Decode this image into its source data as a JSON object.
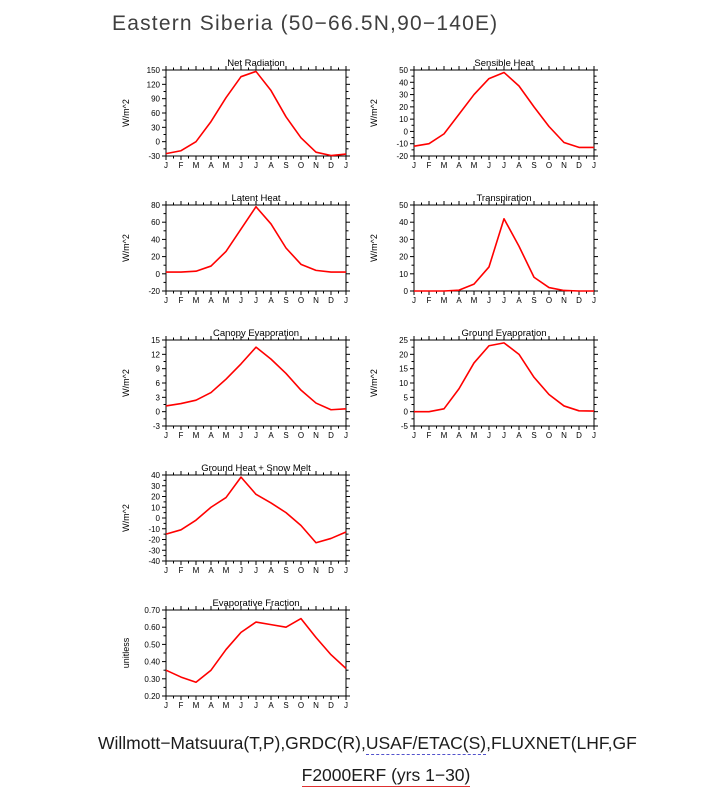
{
  "title": "Eastern Siberia (50−66.5N,90−140E)",
  "footer": {
    "line1_pre": "Willmott−Matsuura(T,P),GRDC(R),",
    "line1_dashed": "USAF/ETAC(S)",
    "line1_post": ",FLUXNET(LHF,GF",
    "line2_red": "F2000ERF (yrs 1−30)"
  },
  "line_color": "#ff0000",
  "axis_color": "#000000",
  "chart_data": [
    {
      "type": "line",
      "title": "Net Radiation",
      "ylabel": "W/m^2",
      "xlabel": "",
      "categories": [
        "J",
        "F",
        "M",
        "A",
        "M",
        "J",
        "J",
        "A",
        "S",
        "O",
        "N",
        "D",
        "J"
      ],
      "ylim": [
        -30,
        150
      ],
      "ytick_vals": [
        -30,
        0,
        30,
        60,
        90,
        120,
        150
      ],
      "ytick_labels": [
        "-30",
        "0",
        "30",
        "60",
        "90",
        "120",
        "150"
      ],
      "values": [
        -25,
        -19,
        0,
        42,
        92,
        136,
        147,
        107,
        52,
        8,
        -22,
        -29,
        -26
      ],
      "line_color": "#ff0000"
    },
    {
      "type": "line",
      "title": "Sensible Heat",
      "ylabel": "W/m^2",
      "xlabel": "",
      "categories": [
        "J",
        "F",
        "M",
        "A",
        "M",
        "J",
        "J",
        "A",
        "S",
        "O",
        "N",
        "D",
        "J"
      ],
      "ylim": [
        -20,
        50
      ],
      "ytick_vals": [
        -20,
        -10,
        0,
        10,
        20,
        30,
        40,
        50
      ],
      "ytick_labels": [
        "-20",
        "-10",
        "0",
        "10",
        "20",
        "30",
        "40",
        "50"
      ],
      "values": [
        -12,
        -10,
        -2,
        14,
        30,
        43,
        48,
        37,
        20,
        4,
        -9,
        -13,
        -13
      ],
      "line_color": "#ff0000"
    },
    {
      "type": "line",
      "title": "Latent Heat",
      "ylabel": "W/m^2",
      "xlabel": "",
      "categories": [
        "J",
        "F",
        "M",
        "A",
        "M",
        "J",
        "J",
        "A",
        "S",
        "O",
        "N",
        "D",
        "J"
      ],
      "ylim": [
        -20,
        80
      ],
      "ytick_vals": [
        -20,
        0,
        20,
        40,
        60,
        80
      ],
      "ytick_labels": [
        "-20",
        "0",
        "20",
        "40",
        "60",
        "80"
      ],
      "values": [
        2,
        2,
        3,
        9,
        26,
        52,
        78,
        58,
        30,
        11,
        4,
        2,
        2
      ],
      "line_color": "#ff0000"
    },
    {
      "type": "line",
      "title": "Transpiration",
      "ylabel": "W/m^2",
      "xlabel": "",
      "categories": [
        "J",
        "F",
        "M",
        "A",
        "M",
        "J",
        "J",
        "A",
        "S",
        "O",
        "N",
        "D",
        "J"
      ],
      "ylim": [
        0,
        50
      ],
      "ytick_vals": [
        0,
        10,
        20,
        30,
        40,
        50
      ],
      "ytick_labels": [
        "0",
        "10",
        "20",
        "30",
        "40",
        "50"
      ],
      "values": [
        0,
        0,
        0,
        0.5,
        4,
        14,
        42,
        26,
        8,
        2,
        0.3,
        0,
        0
      ],
      "line_color": "#ff0000"
    },
    {
      "type": "line",
      "title": "Canopy Evaporation",
      "ylabel": "W/m^2",
      "xlabel": "",
      "categories": [
        "J",
        "F",
        "M",
        "A",
        "M",
        "J",
        "J",
        "A",
        "S",
        "O",
        "N",
        "D",
        "J"
      ],
      "ylim": [
        -3,
        15
      ],
      "ytick_vals": [
        -3,
        0,
        3,
        6,
        9,
        12,
        15
      ],
      "ytick_labels": [
        "-3",
        "0",
        "3",
        "6",
        "9",
        "12",
        "15"
      ],
      "values": [
        1.2,
        1.7,
        2.4,
        4,
        6.8,
        10,
        13.5,
        11,
        8,
        4.5,
        1.8,
        0.4,
        0.6
      ],
      "line_color": "#ff0000"
    },
    {
      "type": "line",
      "title": "Ground Evaporation",
      "ylabel": "W/m^2",
      "xlabel": "",
      "categories": [
        "J",
        "F",
        "M",
        "A",
        "M",
        "J",
        "J",
        "A",
        "S",
        "O",
        "N",
        "D",
        "J"
      ],
      "ylim": [
        -5,
        25
      ],
      "ytick_vals": [
        -5,
        0,
        5,
        10,
        15,
        20,
        25
      ],
      "ytick_labels": [
        "-5",
        "0",
        "5",
        "10",
        "15",
        "20",
        "25"
      ],
      "values": [
        0,
        0,
        1,
        8,
        17,
        23,
        24,
        20,
        12,
        6,
        2,
        0.3,
        0.2
      ],
      "line_color": "#ff0000"
    },
    {
      "type": "line",
      "title": "Ground Heat + Snow Melt",
      "ylabel": "W/m^2",
      "xlabel": "",
      "categories": [
        "J",
        "F",
        "M",
        "A",
        "M",
        "J",
        "J",
        "A",
        "S",
        "O",
        "N",
        "D",
        "J"
      ],
      "ylim": [
        -40,
        40
      ],
      "ytick_vals": [
        -40,
        -30,
        -20,
        -10,
        0,
        10,
        20,
        30,
        40
      ],
      "ytick_labels": [
        "-40",
        "-30",
        "-20",
        "-10",
        "0",
        "10",
        "20",
        "30",
        "40"
      ],
      "values": [
        -15,
        -11,
        -2,
        10,
        19,
        38,
        22,
        14,
        5,
        -7,
        -23,
        -19,
        -13
      ],
      "line_color": "#ff0000"
    },
    {
      "type": "line",
      "title": "Evaporative Fraction",
      "ylabel": "unitless",
      "xlabel": "",
      "categories": [
        "J",
        "F",
        "M",
        "A",
        "M",
        "J",
        "J",
        "A",
        "S",
        "O",
        "N",
        "D",
        "J"
      ],
      "ylim": [
        0.2,
        0.7
      ],
      "ytick_vals": [
        0.2,
        0.3,
        0.4,
        0.5,
        0.6,
        0.7
      ],
      "ytick_labels": [
        "0.20",
        "0.30",
        "0.40",
        "0.50",
        "0.60",
        "0.70"
      ],
      "values": [
        0.35,
        0.31,
        0.28,
        0.35,
        0.47,
        0.57,
        0.63,
        0.615,
        0.6,
        0.65,
        0.54,
        0.44,
        0.36
      ],
      "line_color": "#ff0000"
    }
  ]
}
